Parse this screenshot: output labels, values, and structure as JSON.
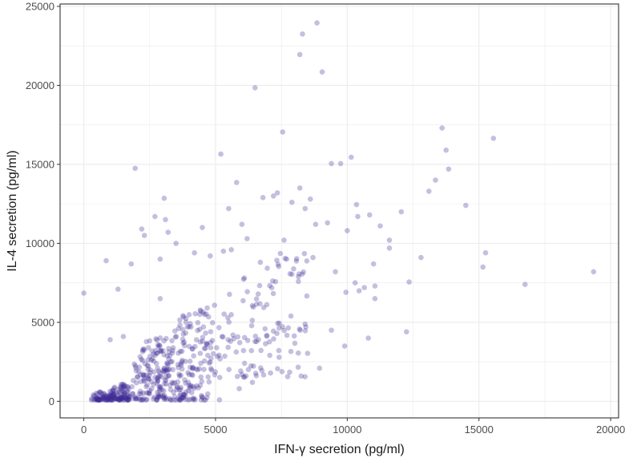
{
  "chart_data": {
    "type": "scatter",
    "title": "",
    "xlabel": "IFN-γ secretion (pg/ml)",
    "ylabel": "IL-4 secretion (pg/ml)",
    "xlim": [
      -900,
      20300
    ],
    "ylim": [
      -1050,
      25150
    ],
    "x_ticks": [
      0,
      5000,
      10000,
      15000,
      20000
    ],
    "y_ticks": [
      0,
      5000,
      10000,
      15000,
      20000,
      25000
    ],
    "x_tick_labels": [
      "0",
      "5000",
      "10000",
      "15000",
      "20000"
    ],
    "y_tick_labels": [
      "0",
      "5000",
      "10000",
      "15000",
      "20000",
      "25000"
    ],
    "grid": true,
    "legend": "none",
    "point_color": "#3f2a96",
    "point_opacity": 0.3,
    "background": "#ffffff",
    "gridline_color": "#ebebeb",
    "frame_color": "#333333",
    "series": [
      {
        "x": [
          8850,
          8300,
          8200,
          6500,
          9050,
          7550,
          13600,
          15550,
          13750,
          13850,
          10150,
          9750,
          9400,
          5200,
          1950,
          13350,
          5800,
          14500,
          10350,
          12800,
          15250,
          15150,
          13100,
          12050,
          16750,
          19350,
          11600,
          11600,
          11250,
          10850,
          11000,
          12350,
          11050,
          10450,
          9950,
          10650,
          3050,
          8200,
          7900,
          7350,
          8400,
          8600,
          8800,
          9250,
          10400,
          10000,
          0,
          850,
          1300,
          3200,
          2200,
          2300,
          2700,
          3500,
          1800,
          2900,
          3100,
          4500,
          5500,
          6000,
          6800,
          7200,
          7600,
          5600,
          6200,
          2900,
          1000,
          1500,
          4200,
          4800,
          5300,
          6700,
          7700,
          8700,
          9550,
          10300,
          11050,
          12250,
          5150,
          5900,
          8250,
          8950,
          6000,
          3300,
          2800,
          4000,
          6400,
          10800,
          9900,
          9400
        ],
        "y": [
          23950,
          23250,
          21950,
          19850,
          20850,
          17050,
          17300,
          16650,
          15900,
          14700,
          15450,
          15050,
          15050,
          15650,
          14750,
          14000,
          13850,
          12400,
          12450,
          9100,
          9400,
          8500,
          13300,
          12000,
          7400,
          8200,
          10200,
          9700,
          11100,
          11800,
          8700,
          7550,
          7300,
          7000,
          6900,
          7200,
          12850,
          13500,
          12600,
          13200,
          12200,
          12800,
          11200,
          11300,
          11700,
          10800,
          6850,
          8900,
          7100,
          10700,
          10900,
          10500,
          11700,
          10000,
          8700,
          9000,
          11500,
          11000,
          12200,
          11200,
          12900,
          13000,
          10200,
          9600,
          10300,
          6500,
          3900,
          4100,
          9400,
          9200,
          9500,
          8800,
          9000,
          9100,
          8200,
          7500,
          6500,
          4400,
          100,
          800,
          1600,
          2100,
          1700,
          2500,
          1500,
          1000,
          1200,
          4000,
          3500,
          4500
        ]
      }
    ],
    "cluster_density_note": ""
  }
}
